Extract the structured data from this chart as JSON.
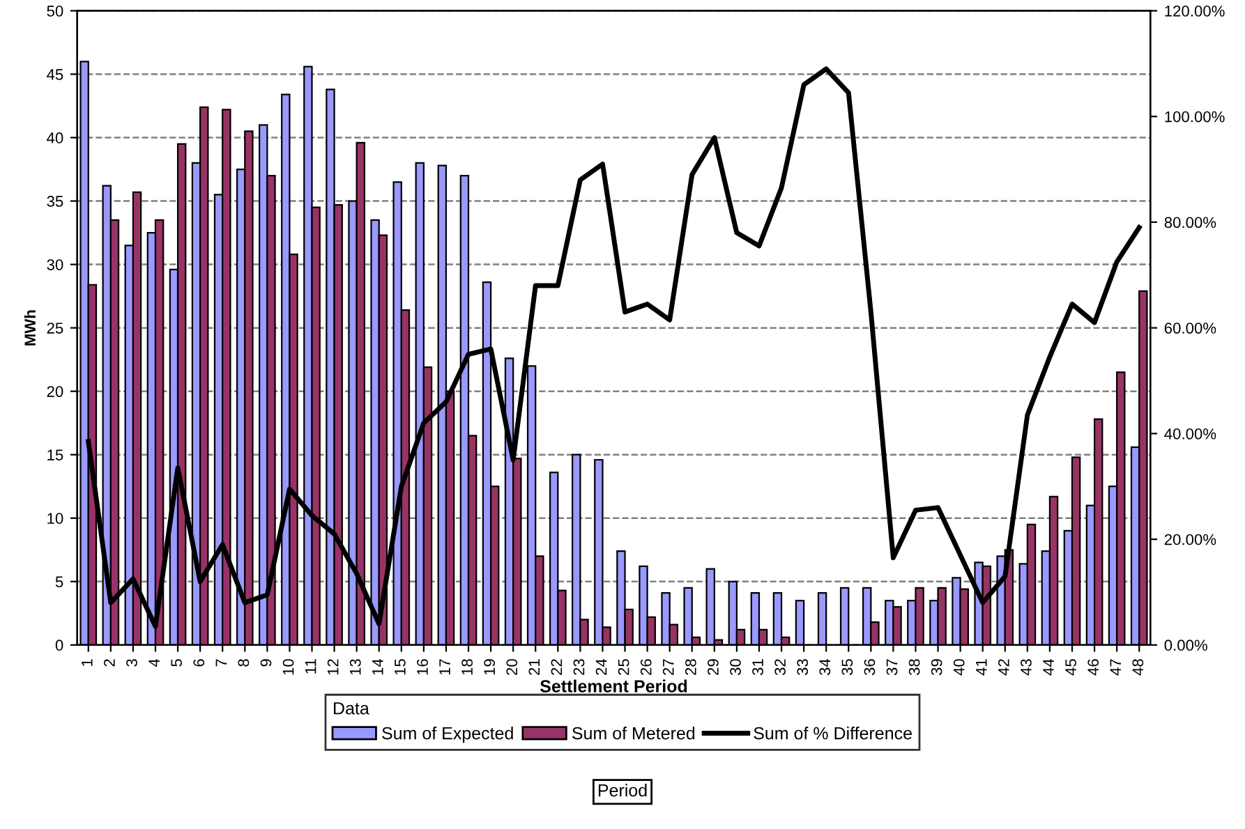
{
  "chart_data": {
    "type": "bar",
    "categories": [
      "1",
      "2",
      "3",
      "4",
      "5",
      "6",
      "7",
      "8",
      "9",
      "10",
      "11",
      "12",
      "13",
      "14",
      "15",
      "16",
      "17",
      "18",
      "19",
      "20",
      "21",
      "22",
      "23",
      "24",
      "25",
      "26",
      "27",
      "28",
      "29",
      "30",
      "31",
      "32",
      "33",
      "34",
      "35",
      "36",
      "37",
      "38",
      "39",
      "40",
      "41",
      "42",
      "43",
      "44",
      "45",
      "46",
      "47",
      "48"
    ],
    "xlabel": "Settlement Period",
    "ylabel": "MWh",
    "legend_title": "Data",
    "annotations": [
      "Period"
    ],
    "series": [
      {
        "name": "Sum of Expected",
        "color": "#9999ff",
        "values": [
          46,
          36.2,
          31.5,
          32.5,
          29.6,
          38,
          35.5,
          37.5,
          41,
          43.4,
          45.6,
          43.8,
          35,
          33.5,
          36.5,
          38,
          37.8,
          37,
          28.6,
          22.6,
          22,
          13.6,
          15,
          14.6,
          7.4,
          6.2,
          4.1,
          4.5,
          6,
          5,
          4.1,
          4.1,
          3.5,
          4.1,
          4.5,
          4.5,
          3.5,
          3.5,
          3.5,
          5.3,
          6.5,
          7,
          6.4,
          7.4,
          9,
          11,
          12.5,
          15.6
        ]
      },
      {
        "name": "Sum of Metered",
        "color": "#993366",
        "values": [
          28.4,
          33.5,
          35.7,
          33.5,
          39.5,
          42.4,
          42.2,
          40.5,
          37,
          30.8,
          34.5,
          34.7,
          39.6,
          32.3,
          26.4,
          21.9,
          20,
          16.5,
          12.5,
          14.7,
          7,
          4.3,
          2,
          1.4,
          2.8,
          2.2,
          1.6,
          0.6,
          0.4,
          1.2,
          1.2,
          0.6,
          null,
          null,
          null,
          1.8,
          3,
          4.5,
          4.5,
          4.4,
          6.2,
          7.5,
          9.5,
          11.7,
          14.8,
          17.8,
          21.5,
          27.9
        ]
      },
      {
        "name": "Sum of % Difference",
        "type": "line",
        "axis": "y2",
        "color": "#000000",
        "values": [
          38.5,
          8,
          12.5,
          3.5,
          33.5,
          12,
          19,
          8,
          9.5,
          29.5,
          24.5,
          21,
          13.5,
          4,
          30,
          42,
          46,
          55,
          56,
          35,
          68,
          68,
          88,
          91,
          63,
          64.5,
          61.5,
          89,
          96,
          78,
          75.5,
          86.5,
          106,
          109,
          104.5,
          63,
          16.5,
          25.5,
          26,
          17,
          8,
          13,
          43.5,
          54.5,
          64.5,
          61,
          72.5,
          79
        ]
      }
    ],
    "ylim": [
      0,
      50
    ],
    "yticks": [
      0,
      5,
      10,
      15,
      20,
      25,
      30,
      35,
      40,
      45,
      50
    ],
    "y2lim": [
      0,
      120
    ],
    "y2ticks": [
      {
        "value": 0,
        "label": "0.00%"
      },
      {
        "value": 20,
        "label": "20.00%"
      },
      {
        "value": 40,
        "label": "40.00%"
      },
      {
        "value": 60,
        "label": "60.00%"
      },
      {
        "value": 80,
        "label": "80.00%"
      },
      {
        "value": 100,
        "label": "100.00%"
      },
      {
        "value": 120,
        "label": "120.00%"
      }
    ],
    "grid": "y",
    "legend": "bottom"
  }
}
